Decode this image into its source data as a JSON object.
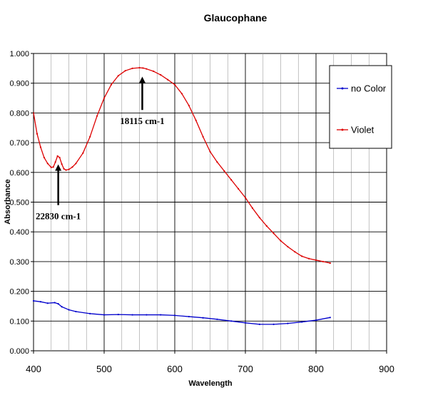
{
  "chart_data": {
    "type": "line",
    "title": "Glaucophane",
    "xlabel": "Wavelength",
    "ylabel": "Absorbance",
    "xlim": [
      400,
      900
    ],
    "ylim": [
      0,
      1
    ],
    "x_ticks": [
      400,
      500,
      600,
      700,
      800,
      900
    ],
    "y_ticks": [
      "0.000",
      "0.100",
      "0.200",
      "0.300",
      "0.400",
      "0.500",
      "0.600",
      "0.700",
      "0.800",
      "0.900",
      "1.000"
    ],
    "legend_position": "right",
    "series": [
      {
        "name": "no Color",
        "color": "#0000cc",
        "x": [
          400,
          410,
          420,
          430,
          435,
          440,
          450,
          460,
          480,
          500,
          520,
          540,
          560,
          580,
          600,
          620,
          640,
          660,
          680,
          700,
          720,
          740,
          760,
          780,
          800,
          820
        ],
        "y": [
          0.168,
          0.165,
          0.16,
          0.162,
          0.158,
          0.148,
          0.138,
          0.132,
          0.125,
          0.121,
          0.122,
          0.121,
          0.121,
          0.121,
          0.119,
          0.115,
          0.111,
          0.106,
          0.1,
          0.094,
          0.089,
          0.089,
          0.092,
          0.097,
          0.103,
          0.112
        ]
      },
      {
        "name": "Violet",
        "color": "#dd0000",
        "x": [
          400,
          405,
          410,
          415,
          420,
          425,
          428,
          431,
          434,
          437,
          440,
          443,
          446,
          450,
          455,
          460,
          470,
          480,
          490,
          500,
          510,
          520,
          530,
          540,
          550,
          555,
          560,
          570,
          580,
          590,
          600,
          610,
          620,
          630,
          640,
          650,
          660,
          670,
          680,
          690,
          700,
          710,
          720,
          730,
          740,
          750,
          760,
          770,
          780,
          790,
          800,
          810,
          820
        ],
        "y": [
          0.8,
          0.73,
          0.685,
          0.65,
          0.63,
          0.617,
          0.618,
          0.635,
          0.655,
          0.65,
          0.628,
          0.612,
          0.608,
          0.61,
          0.618,
          0.63,
          0.665,
          0.72,
          0.79,
          0.85,
          0.895,
          0.925,
          0.942,
          0.95,
          0.952,
          0.951,
          0.948,
          0.94,
          0.928,
          0.912,
          0.895,
          0.865,
          0.825,
          0.775,
          0.72,
          0.67,
          0.635,
          0.605,
          0.575,
          0.545,
          0.515,
          0.48,
          0.448,
          0.42,
          0.395,
          0.37,
          0.35,
          0.333,
          0.318,
          0.31,
          0.305,
          0.3,
          0.295
        ]
      }
    ],
    "annotations": [
      {
        "text": "22830 cm-1",
        "x": 435,
        "y": 0.627,
        "y_tail": 0.49
      },
      {
        "text": "18115 cm-1",
        "x": 554,
        "y": 0.922,
        "y_tail": 0.81
      }
    ]
  }
}
